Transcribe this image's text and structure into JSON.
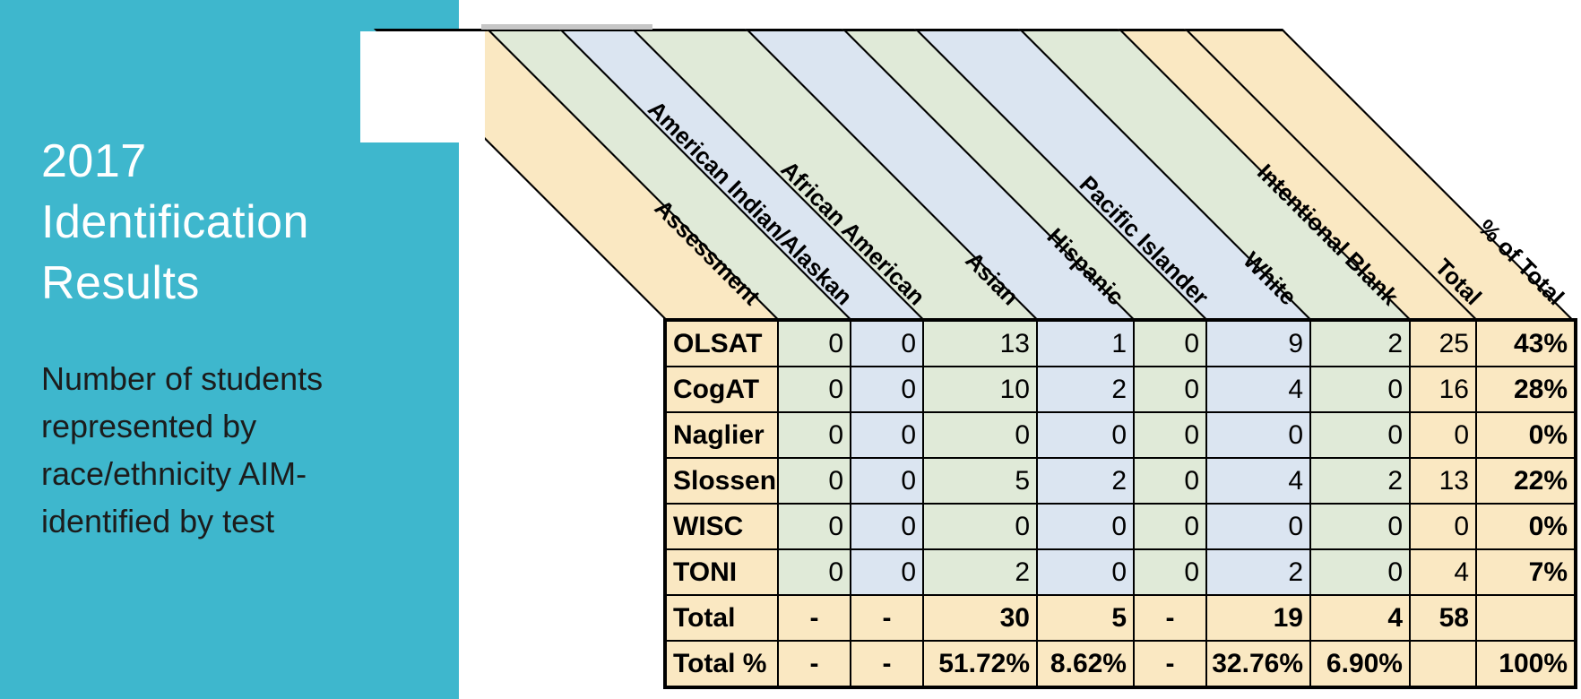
{
  "sidebar": {
    "bg_color": "#3EB7CD",
    "title_lines": [
      "2017",
      "Identification",
      "Results"
    ],
    "subtitle_lines": [
      "Number of students",
      "represented by",
      "race/ethnicity AIM-",
      "identified by test"
    ]
  },
  "table": {
    "palette": {
      "tan": "#FAE8C2",
      "green": "#E0EAD8",
      "blue": "#DBE5F1",
      "border": "#000000",
      "artifact_gray": "#C6C6C6"
    },
    "columns": [
      {
        "label": "Assessment",
        "color": "tan"
      },
      {
        "label": "American Indian/Alaskan",
        "color": "green"
      },
      {
        "label": "African American",
        "color": "blue"
      },
      {
        "label": "Asian",
        "color": "green"
      },
      {
        "label": "Hispanic",
        "color": "blue"
      },
      {
        "label": "Pacific Islander",
        "color": "green"
      },
      {
        "label": "White",
        "color": "blue"
      },
      {
        "label": "Intentional Blank",
        "color": "green"
      },
      {
        "label": "Total",
        "color": "tan"
      },
      {
        "label": "% of Total",
        "color": "tan"
      }
    ],
    "rows": [
      {
        "label": "OLSAT",
        "style": "data",
        "values": [
          "0",
          "0",
          "13",
          "1",
          "0",
          "9",
          "2",
          "25",
          "43%"
        ]
      },
      {
        "label": "CogAT",
        "style": "data",
        "values": [
          "0",
          "0",
          "10",
          "2",
          "0",
          "4",
          "0",
          "16",
          "28%"
        ]
      },
      {
        "label": "Naglier",
        "style": "data",
        "values": [
          "0",
          "0",
          "0",
          "0",
          "0",
          "0",
          "0",
          "0",
          "0%"
        ]
      },
      {
        "label": "Slossen",
        "style": "data",
        "values": [
          "0",
          "0",
          "5",
          "2",
          "0",
          "4",
          "2",
          "13",
          "22%"
        ]
      },
      {
        "label": "WISC",
        "style": "data",
        "values": [
          "0",
          "0",
          "0",
          "0",
          "0",
          "0",
          "0",
          "0",
          "0%"
        ]
      },
      {
        "label": "TONI",
        "style": "data",
        "values": [
          "0",
          "0",
          "2",
          "0",
          "0",
          "2",
          "0",
          "4",
          "7%"
        ]
      },
      {
        "label": "Total",
        "style": "total",
        "values": [
          "-",
          "-",
          "30",
          "5",
          "-",
          "19",
          "4",
          "58",
          ""
        ]
      },
      {
        "label": "Total %",
        "style": "total",
        "values": [
          "-",
          "-",
          "51.72%",
          "8.62%",
          "-",
          "32.76%",
          "6.90%",
          "",
          "100%"
        ]
      }
    ]
  },
  "chart_data": {
    "type": "table",
    "title": "2017 Identification Results",
    "note": "Number of students represented by race/ethnicity AIM-identified by test",
    "categories": [
      "American Indian/Alaskan",
      "African American",
      "Asian",
      "Hispanic",
      "Pacific Islander",
      "White",
      "Intentional Blank"
    ],
    "series": [
      {
        "name": "OLSAT",
        "values": [
          0,
          0,
          13,
          1,
          0,
          9,
          2
        ],
        "total": 25,
        "pct_of_total": "43%"
      },
      {
        "name": "CogAT",
        "values": [
          0,
          0,
          10,
          2,
          0,
          4,
          0
        ],
        "total": 16,
        "pct_of_total": "28%"
      },
      {
        "name": "Naglier",
        "values": [
          0,
          0,
          0,
          0,
          0,
          0,
          0
        ],
        "total": 0,
        "pct_of_total": "0%"
      },
      {
        "name": "Slossen",
        "values": [
          0,
          0,
          5,
          2,
          0,
          4,
          2
        ],
        "total": 13,
        "pct_of_total": "22%"
      },
      {
        "name": "WISC",
        "values": [
          0,
          0,
          0,
          0,
          0,
          0,
          0
        ],
        "total": 0,
        "pct_of_total": "0%"
      },
      {
        "name": "TONI",
        "values": [
          0,
          0,
          2,
          0,
          0,
          2,
          0
        ],
        "total": 4,
        "pct_of_total": "7%"
      }
    ],
    "column_totals": [
      "-",
      "-",
      "30",
      "5",
      "-",
      "19",
      "4"
    ],
    "grand_total": 58,
    "column_total_pcts": [
      "-",
      "-",
      "51.72%",
      "8.62%",
      "-",
      "32.76%",
      "6.90%"
    ],
    "grand_total_pct": "100%"
  }
}
